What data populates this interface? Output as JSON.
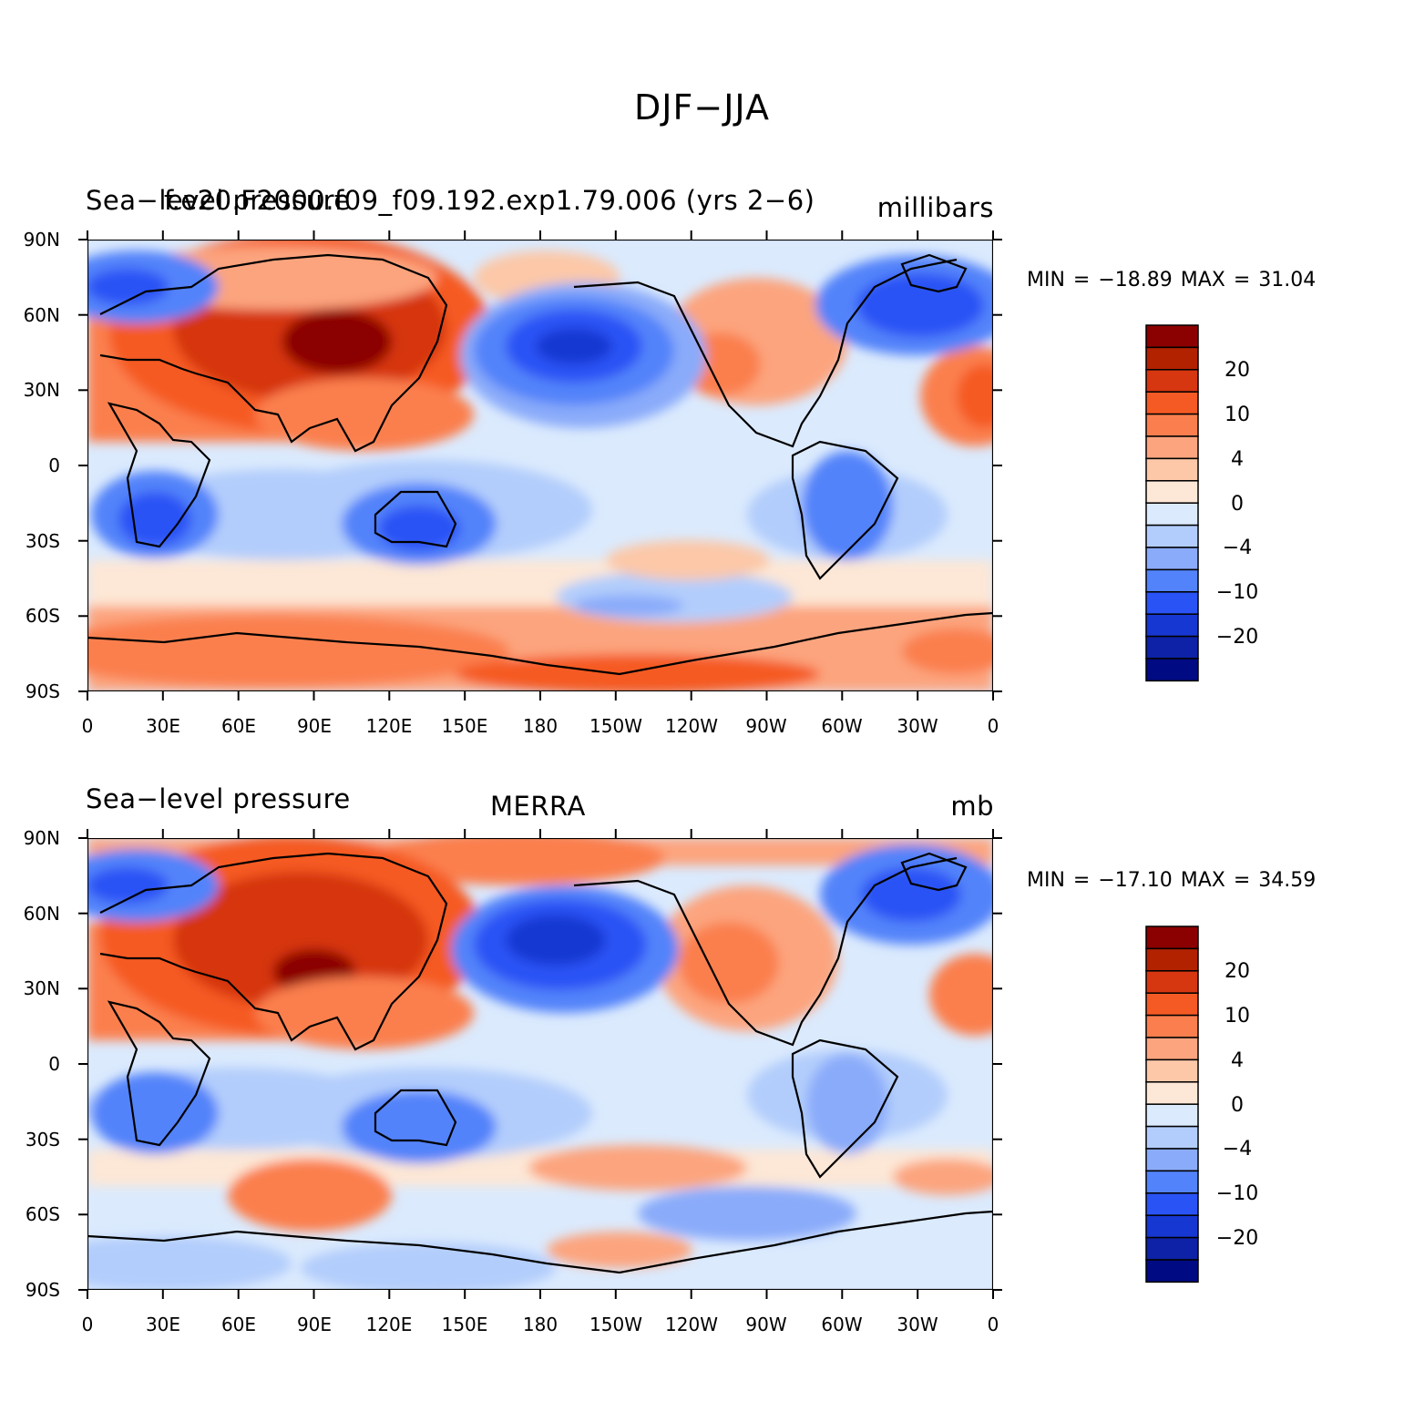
{
  "figure": {
    "title": "DJF−JJA"
  },
  "colorbar": {
    "colors": [
      "#8b0000",
      "#b22200",
      "#d63610",
      "#f55a24",
      "#fb7f4e",
      "#fca47e",
      "#fcc8a8",
      "#fde7d6",
      "#dbeafd",
      "#b2cdfc",
      "#8aabfa",
      "#5283fa",
      "#2a53f5",
      "#1737d2",
      "#0d22a6",
      "#000a82"
    ],
    "labels": [
      "20",
      "10",
      "4",
      "0",
      "−4",
      "−10",
      "−20"
    ]
  },
  "axes": {
    "lat_labels": [
      "90N",
      "60N",
      "30N",
      "0",
      "30S",
      "60S",
      "90S"
    ],
    "lon_labels": [
      "0",
      "30E",
      "60E",
      "90E",
      "120E",
      "150E",
      "180",
      "150W",
      "120W",
      "90W",
      "60W",
      "30W",
      "0"
    ]
  },
  "panels": [
    {
      "left_title": "Sea−level pressure",
      "center_title": "f.e20.F2000.f09_f09.192.exp1.79.006 (yrs 2−6)",
      "units": "millibars",
      "min_max": "MIN = −18.89 MAX =   31.04"
    },
    {
      "left_title": "Sea−level pressure",
      "center_title": "MERRA",
      "units": "mb",
      "min_max": "MIN = −17.10 MAX =   34.59"
    }
  ]
}
